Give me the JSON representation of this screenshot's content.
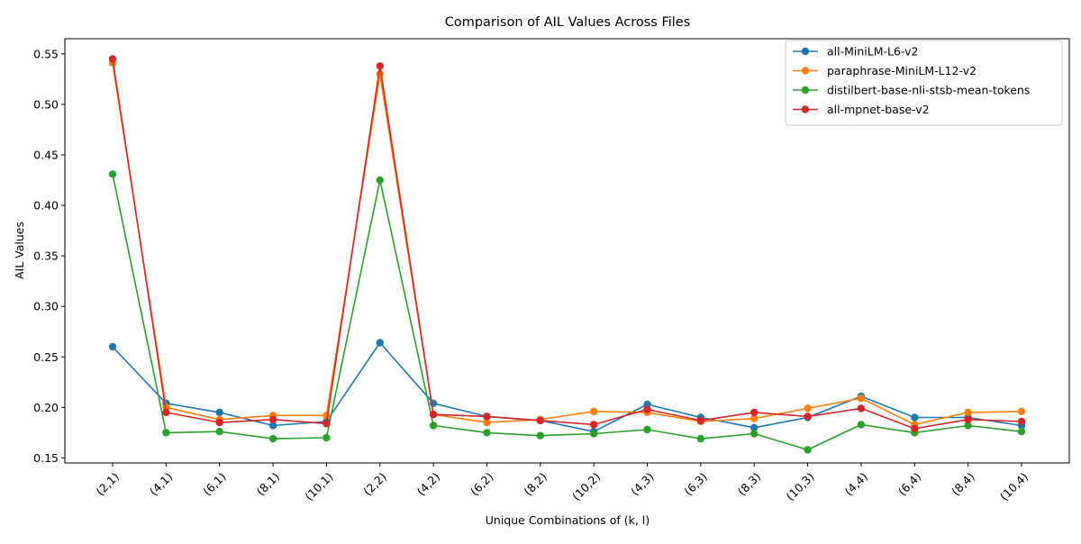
{
  "chart_data": {
    "type": "line",
    "title": "Comparison of AIL Values Across Files",
    "xlabel": "Unique Combinations of (k, l)",
    "ylabel": "AIL Values",
    "ylim": [
      0.145,
      0.565
    ],
    "yticks": [
      0.15,
      0.2,
      0.25,
      0.3,
      0.35,
      0.4,
      0.45,
      0.5,
      0.55
    ],
    "ytick_labels": [
      "0.15",
      "0.20",
      "0.25",
      "0.30",
      "0.35",
      "0.40",
      "0.45",
      "0.50",
      "0.55"
    ],
    "grid": false,
    "legend_position": "top-right",
    "categories": [
      "(2,1)",
      "(4,1)",
      "(6,1)",
      "(8,1)",
      "(10,1)",
      "(2,2)",
      "(4,2)",
      "(6,2)",
      "(8,2)",
      "(10,2)",
      "(4,3)",
      "(6,3)",
      "(8,3)",
      "(10,3)",
      "(4,4)",
      "(6,4)",
      "(8,4)",
      "(10,4)"
    ],
    "series": [
      {
        "name": "all-MiniLM-L6-v2",
        "color": "#1f77b4",
        "values": [
          0.26,
          0.204,
          0.195,
          0.182,
          0.186,
          0.264,
          0.204,
          0.191,
          0.187,
          0.176,
          0.203,
          0.19,
          0.18,
          0.19,
          0.211,
          0.19,
          0.19,
          0.182
        ]
      },
      {
        "name": "paraphrase-MiniLM-L12-v2",
        "color": "#ff7f0e",
        "values": [
          0.541,
          0.2,
          0.188,
          0.192,
          0.192,
          0.53,
          0.193,
          0.185,
          0.188,
          0.196,
          0.195,
          0.186,
          0.189,
          0.199,
          0.209,
          0.183,
          0.195,
          0.196
        ]
      },
      {
        "name": "distilbert-base-nli-stsb-mean-tokens",
        "color": "#2ca02c",
        "values": [
          0.431,
          0.175,
          0.176,
          0.169,
          0.17,
          0.425,
          0.182,
          0.175,
          0.172,
          0.174,
          0.178,
          0.169,
          0.174,
          0.158,
          0.183,
          0.175,
          0.182,
          0.176
        ]
      },
      {
        "name": "all-mpnet-base-v2",
        "color": "#d62728",
        "values": [
          0.545,
          0.195,
          0.185,
          0.188,
          0.184,
          0.538,
          0.193,
          0.191,
          0.187,
          0.183,
          0.198,
          0.187,
          0.195,
          0.191,
          0.199,
          0.179,
          0.188,
          0.186
        ]
      }
    ]
  }
}
